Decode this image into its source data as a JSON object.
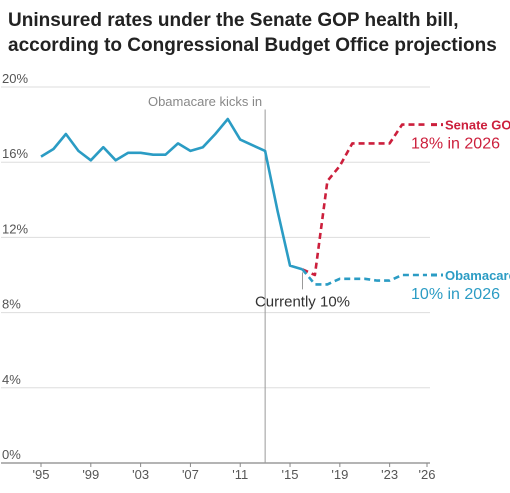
{
  "chart_data": {
    "type": "line",
    "title": "Uninsured rates under the Senate GOP health bill, according to Congressional Budget Office projections",
    "xlabel": "",
    "ylabel": "",
    "xlim": [
      1995,
      2026
    ],
    "ylim": [
      0,
      20
    ],
    "y_ticks": [
      {
        "value": 0,
        "label": "0%"
      },
      {
        "value": 4,
        "label": "4%"
      },
      {
        "value": 8,
        "label": "8%"
      },
      {
        "value": 12,
        "label": "12%"
      },
      {
        "value": 16,
        "label": "16%"
      },
      {
        "value": 20,
        "label": "20%"
      }
    ],
    "x_ticks": [
      {
        "value": 1995,
        "label": "'95"
      },
      {
        "value": 1999,
        "label": "'99"
      },
      {
        "value": 2003,
        "label": "'03"
      },
      {
        "value": 2007,
        "label": "'07"
      },
      {
        "value": 2011,
        "label": "'11"
      },
      {
        "value": 2015,
        "label": "'15"
      },
      {
        "value": 2019,
        "label": "'19"
      },
      {
        "value": 2023,
        "label": "'23"
      },
      {
        "value": 2026,
        "label": "'26"
      }
    ],
    "grid": true,
    "historical": {
      "color": "#2b9cc4",
      "points": [
        [
          1995,
          16.3
        ],
        [
          1996,
          16.7
        ],
        [
          1997,
          17.5
        ],
        [
          1998,
          16.6
        ],
        [
          1999,
          16.1
        ],
        [
          2000,
          16.8
        ],
        [
          2001,
          16.1
        ],
        [
          2002,
          16.5
        ],
        [
          2003,
          16.5
        ],
        [
          2004,
          16.4
        ],
        [
          2005,
          16.4
        ],
        [
          2006,
          17.0
        ],
        [
          2007,
          16.6
        ],
        [
          2008,
          16.8
        ],
        [
          2009,
          17.5
        ],
        [
          2010,
          18.3
        ],
        [
          2011,
          17.2
        ],
        [
          2012,
          16.9
        ],
        [
          2013,
          16.6
        ],
        [
          2014,
          13.4
        ],
        [
          2015,
          10.5
        ],
        [
          2016,
          10.3
        ]
      ]
    },
    "series": [
      {
        "name": "Senate GOP",
        "color": "#cc1f3c",
        "dashed": true,
        "points": [
          [
            2016,
            10.3
          ],
          [
            2017,
            10.0
          ],
          [
            2018,
            15.0
          ],
          [
            2019,
            15.8
          ],
          [
            2020,
            17.0
          ],
          [
            2021,
            17.0
          ],
          [
            2022,
            17.0
          ],
          [
            2023,
            17.0
          ],
          [
            2024,
            18.0
          ],
          [
            2025,
            18.0
          ],
          [
            2026,
            18.0
          ]
        ]
      },
      {
        "name": "Obamacare",
        "color": "#2b9cc4",
        "dashed": true,
        "points": [
          [
            2016,
            10.3
          ],
          [
            2017,
            9.5
          ],
          [
            2018,
            9.5
          ],
          [
            2019,
            9.8
          ],
          [
            2020,
            9.8
          ],
          [
            2021,
            9.8
          ],
          [
            2022,
            9.7
          ],
          [
            2023,
            9.7
          ],
          [
            2024,
            10.0
          ],
          [
            2025,
            10.0
          ],
          [
            2026,
            10.0
          ]
        ]
      }
    ],
    "annotations": {
      "policy_line": {
        "x": 2013,
        "label": "Obamacare kicks in"
      },
      "current": {
        "x": 2016,
        "y": 10.3,
        "label": "Currently 10%"
      },
      "gop_end": {
        "sub": "18% in 2026"
      },
      "oba_end": {
        "sub": "10% in 2026"
      }
    }
  }
}
